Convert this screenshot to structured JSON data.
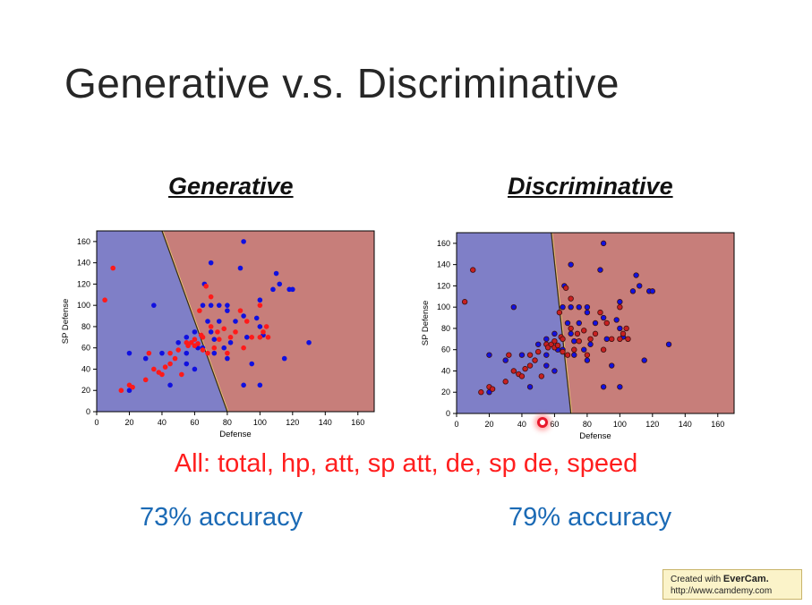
{
  "slide": {
    "title": "Generative v.s. Discriminative",
    "subtitle": "All: total, hp, att, sp att, de, sp de, speed",
    "accuracy_left": "73% accuracy",
    "accuracy_right": "79% accuracy",
    "watermark": {
      "line1": "Created with",
      "brand": "EverCam.",
      "line2": "http://www.camdemy.com"
    }
  },
  "chart_data": [
    {
      "type": "scatter",
      "title": "Generative",
      "xlabel": "Defense",
      "ylabel": "SP Defense",
      "xlim": [
        0,
        170
      ],
      "ylim": [
        0,
        170
      ],
      "xticks": [
        0,
        20,
        40,
        60,
        80,
        100,
        120,
        140,
        160
      ],
      "yticks": [
        0,
        20,
        40,
        60,
        80,
        100,
        120,
        140,
        160
      ],
      "grid": false,
      "colors": {
        "left_region": "#7f7fc7",
        "right_region": "#c77e7a",
        "class_a": "#1010e0",
        "class_b": "#ff1a1a"
      },
      "boundary": [
        [
          40,
          170
        ],
        [
          80,
          0
        ]
      ],
      "series": [
        {
          "color": "#1010e0",
          "points": [
            [
              20,
              20
            ],
            [
              20,
              55
            ],
            [
              30,
              50
            ],
            [
              35,
              100
            ],
            [
              40,
              55
            ],
            [
              45,
              25
            ],
            [
              50,
              65
            ],
            [
              55,
              70
            ],
            [
              55,
              45
            ],
            [
              55,
              55
            ],
            [
              60,
              75
            ],
            [
              60,
              40
            ],
            [
              62,
              60
            ],
            [
              65,
              60
            ],
            [
              65,
              100
            ],
            [
              66,
              120
            ],
            [
              68,
              85
            ],
            [
              70,
              75
            ],
            [
              70,
              140
            ],
            [
              70,
              100
            ],
            [
              72,
              55
            ],
            [
              72,
              68
            ],
            [
              75,
              85
            ],
            [
              75,
              100
            ],
            [
              78,
              60
            ],
            [
              80,
              100
            ],
            [
              80,
              95
            ],
            [
              80,
              50
            ],
            [
              82,
              65
            ],
            [
              85,
              85
            ],
            [
              88,
              135
            ],
            [
              90,
              160
            ],
            [
              90,
              90
            ],
            [
              90,
              25
            ],
            [
              92,
              70
            ],
            [
              95,
              45
            ],
            [
              98,
              88
            ],
            [
              100,
              105
            ],
            [
              100,
              25
            ],
            [
              100,
              80
            ],
            [
              102,
              72
            ],
            [
              108,
              115
            ],
            [
              110,
              130
            ],
            [
              112,
              120
            ],
            [
              115,
              50
            ],
            [
              118,
              115
            ],
            [
              120,
              115
            ],
            [
              130,
              65
            ]
          ]
        },
        {
          "color": "#ff1a1a",
          "points": [
            [
              5,
              105
            ],
            [
              10,
              135
            ],
            [
              15,
              20
            ],
            [
              20,
              25
            ],
            [
              22,
              23
            ],
            [
              30,
              30
            ],
            [
              32,
              55
            ],
            [
              35,
              40
            ],
            [
              38,
              37
            ],
            [
              40,
              35
            ],
            [
              42,
              42
            ],
            [
              45,
              45
            ],
            [
              45,
              55
            ],
            [
              48,
              50
            ],
            [
              50,
              58
            ],
            [
              52,
              35
            ],
            [
              55,
              65
            ],
            [
              56,
              62
            ],
            [
              58,
              65
            ],
            [
              60,
              68
            ],
            [
              60,
              62
            ],
            [
              62,
              64
            ],
            [
              63,
              95
            ],
            [
              64,
              72
            ],
            [
              65,
              70
            ],
            [
              65,
              58
            ],
            [
              67,
              118
            ],
            [
              68,
              55
            ],
            [
              70,
              80
            ],
            [
              70,
              108
            ],
            [
              72,
              60
            ],
            [
              74,
              75
            ],
            [
              75,
              68
            ],
            [
              78,
              78
            ],
            [
              80,
              55
            ],
            [
              82,
              70
            ],
            [
              85,
              75
            ],
            [
              88,
              95
            ],
            [
              90,
              60
            ],
            [
              92,
              85
            ],
            [
              95,
              70
            ],
            [
              100,
              100
            ],
            [
              100,
              70
            ],
            [
              102,
              75
            ],
            [
              104,
              80
            ],
            [
              105,
              70
            ]
          ]
        }
      ]
    },
    {
      "type": "scatter",
      "title": "Discriminative",
      "xlabel": "Defense",
      "ylabel": "SP Defense",
      "xlim": [
        0,
        170
      ],
      "ylim": [
        0,
        170
      ],
      "xticks": [
        0,
        20,
        40,
        60,
        80,
        100,
        120,
        140,
        160
      ],
      "yticks": [
        0,
        20,
        40,
        60,
        80,
        100,
        120,
        140,
        160
      ],
      "grid": false,
      "colors": {
        "left_region": "#7f7fc7",
        "right_region": "#c77e7a",
        "class_a": "#1010e0",
        "class_b": "#c82020"
      },
      "boundary": [
        [
          58,
          170
        ],
        [
          70,
          0
        ]
      ],
      "series": [
        {
          "color": "#1010e0",
          "points": [
            [
              20,
              20
            ],
            [
              20,
              55
            ],
            [
              30,
              50
            ],
            [
              35,
              100
            ],
            [
              40,
              55
            ],
            [
              45,
              25
            ],
            [
              50,
              65
            ],
            [
              55,
              70
            ],
            [
              55,
              45
            ],
            [
              55,
              55
            ],
            [
              60,
              75
            ],
            [
              60,
              40
            ],
            [
              62,
              60
            ],
            [
              65,
              60
            ],
            [
              65,
              100
            ],
            [
              66,
              120
            ],
            [
              68,
              85
            ],
            [
              70,
              75
            ],
            [
              70,
              140
            ],
            [
              70,
              100
            ],
            [
              72,
              55
            ],
            [
              72,
              68
            ],
            [
              75,
              85
            ],
            [
              75,
              100
            ],
            [
              78,
              60
            ],
            [
              80,
              100
            ],
            [
              80,
              95
            ],
            [
              80,
              50
            ],
            [
              82,
              65
            ],
            [
              85,
              85
            ],
            [
              88,
              135
            ],
            [
              90,
              160
            ],
            [
              90,
              90
            ],
            [
              90,
              25
            ],
            [
              92,
              70
            ],
            [
              95,
              45
            ],
            [
              98,
              88
            ],
            [
              100,
              105
            ],
            [
              100,
              25
            ],
            [
              100,
              80
            ],
            [
              102,
              72
            ],
            [
              108,
              115
            ],
            [
              110,
              130
            ],
            [
              112,
              120
            ],
            [
              115,
              50
            ],
            [
              118,
              115
            ],
            [
              120,
              115
            ],
            [
              130,
              65
            ]
          ]
        },
        {
          "color": "#c82020",
          "points": [
            [
              5,
              105
            ],
            [
              10,
              135
            ],
            [
              15,
              20
            ],
            [
              20,
              25
            ],
            [
              22,
              23
            ],
            [
              30,
              30
            ],
            [
              32,
              55
            ],
            [
              35,
              40
            ],
            [
              38,
              37
            ],
            [
              40,
              35
            ],
            [
              42,
              42
            ],
            [
              45,
              45
            ],
            [
              45,
              55
            ],
            [
              48,
              50
            ],
            [
              50,
              58
            ],
            [
              52,
              35
            ],
            [
              55,
              65
            ],
            [
              56,
              62
            ],
            [
              58,
              65
            ],
            [
              60,
              68
            ],
            [
              60,
              62
            ],
            [
              62,
              64
            ],
            [
              63,
              95
            ],
            [
              64,
              72
            ],
            [
              65,
              70
            ],
            [
              65,
              58
            ],
            [
              67,
              118
            ],
            [
              68,
              55
            ],
            [
              70,
              80
            ],
            [
              70,
              108
            ],
            [
              72,
              60
            ],
            [
              74,
              75
            ],
            [
              75,
              68
            ],
            [
              78,
              78
            ],
            [
              80,
              55
            ],
            [
              82,
              70
            ],
            [
              85,
              75
            ],
            [
              88,
              95
            ],
            [
              90,
              60
            ],
            [
              92,
              85
            ],
            [
              95,
              70
            ],
            [
              100,
              100
            ],
            [
              100,
              70
            ],
            [
              102,
              75
            ],
            [
              104,
              80
            ],
            [
              105,
              70
            ]
          ]
        }
      ]
    }
  ]
}
